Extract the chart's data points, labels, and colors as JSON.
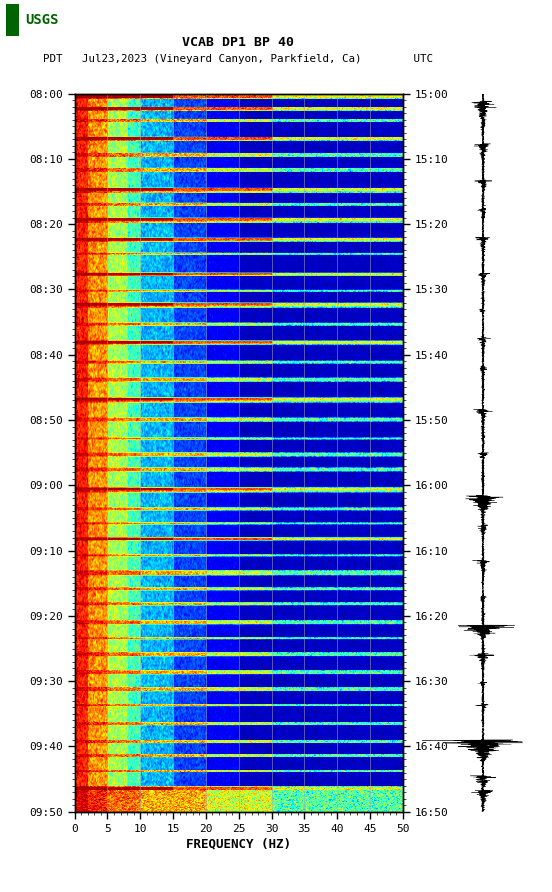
{
  "title_line1": "VCAB DP1 BP 40",
  "title_line2": "PDT   Jul23,2023 (Vineyard Canyon, Parkfield, Ca)        UTC",
  "xlabel": "FREQUENCY (HZ)",
  "freq_min": 0,
  "freq_max": 50,
  "freq_ticks": [
    0,
    5,
    10,
    15,
    20,
    25,
    30,
    35,
    40,
    45,
    50
  ],
  "time_ticks_left": [
    "08:00",
    "08:10",
    "08:20",
    "08:30",
    "08:40",
    "08:50",
    "09:00",
    "09:10",
    "09:20",
    "09:30",
    "09:40",
    "09:50"
  ],
  "time_ticks_right": [
    "15:00",
    "15:10",
    "15:20",
    "15:30",
    "15:40",
    "15:50",
    "16:00",
    "16:10",
    "16:20",
    "16:30",
    "16:40",
    "16:50"
  ],
  "n_time": 720,
  "n_freq": 500,
  "bg_color": "#ffffff",
  "grid_color": "#aaaaaa",
  "grid_alpha": 0.6,
  "usgs_color": "#006400",
  "event_rows": [
    2,
    3,
    4,
    14,
    15,
    26,
    27,
    44,
    45,
    60,
    61,
    75,
    76,
    95,
    96,
    97,
    110,
    111,
    125,
    126,
    127,
    145,
    146,
    160,
    161,
    180,
    181,
    197,
    198,
    210,
    211,
    212,
    230,
    231,
    248,
    249,
    250,
    268,
    269,
    285,
    286,
    305,
    306,
    307,
    325,
    326,
    345,
    346,
    360,
    361,
    375,
    376,
    395,
    396,
    397,
    415,
    416,
    430,
    431,
    445,
    446,
    462,
    463,
    478,
    479,
    480,
    495,
    496,
    510,
    511,
    528,
    529,
    545,
    546,
    560,
    561,
    562,
    578,
    579,
    595,
    596,
    612,
    613,
    630,
    631,
    648,
    649,
    662,
    663,
    678,
    679,
    694,
    695,
    696,
    697,
    698,
    699,
    700,
    701,
    702,
    703,
    704,
    705,
    706,
    707,
    708,
    709,
    710,
    711,
    712,
    713,
    714,
    715,
    716,
    717,
    718,
    719
  ]
}
